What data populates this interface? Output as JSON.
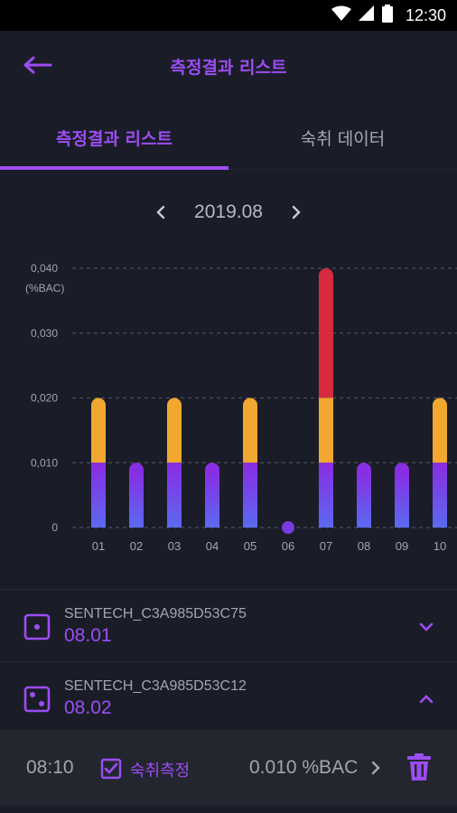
{
  "status_bar": {
    "time": "12:30",
    "icons": [
      "wifi-icon",
      "signal-icon",
      "battery-icon"
    ]
  },
  "app_bar": {
    "back_icon": "arrow-left-icon",
    "title": "측정결과 리스트"
  },
  "tabs": [
    {
      "label": "측정결과 리스트",
      "active": true
    },
    {
      "label": "숙취 데이터",
      "active": false
    }
  ],
  "month_nav": {
    "prev_icon": "chevron-left-icon",
    "label": "2019.08",
    "next_icon": "chevron-right-icon"
  },
  "chart_data": {
    "type": "bar",
    "ylabel": "(%BAC)",
    "ylim": [
      0,
      0.04
    ],
    "yticks": [
      "0",
      "0,010",
      "0,020",
      "0,030",
      "0,040"
    ],
    "categories": [
      "01",
      "02",
      "03",
      "04",
      "05",
      "06",
      "07",
      "08",
      "09",
      "10"
    ],
    "series": [
      {
        "values": [
          0.02,
          0.01,
          0.02,
          0.01,
          0.02,
          0,
          0.04,
          0.01,
          0.01,
          0.02
        ]
      }
    ],
    "level_colors": {
      "purple": "#7a3be0",
      "yellow": "#f0a830",
      "red": "#d62b3f"
    },
    "grid": true
  },
  "list": [
    {
      "device": "SENTECH_C3A985D53C75",
      "date": "08.01",
      "icon": "dice-one-icon",
      "chevron": "chevron-down-icon"
    },
    {
      "device": "SENTECH_C3A985D53C12",
      "date": "08.02",
      "icon": "dice-two-icon",
      "chevron": "chevron-up-icon"
    }
  ],
  "detail": {
    "time": "08:10",
    "checked": true,
    "type_label": "숙취측정",
    "value": "0.010 %BAC",
    "arrow_icon": "chevron-right-icon",
    "delete_icon": "trash-icon"
  },
  "colors": {
    "accent": "#9c4df3",
    "background": "#1a1d28"
  }
}
